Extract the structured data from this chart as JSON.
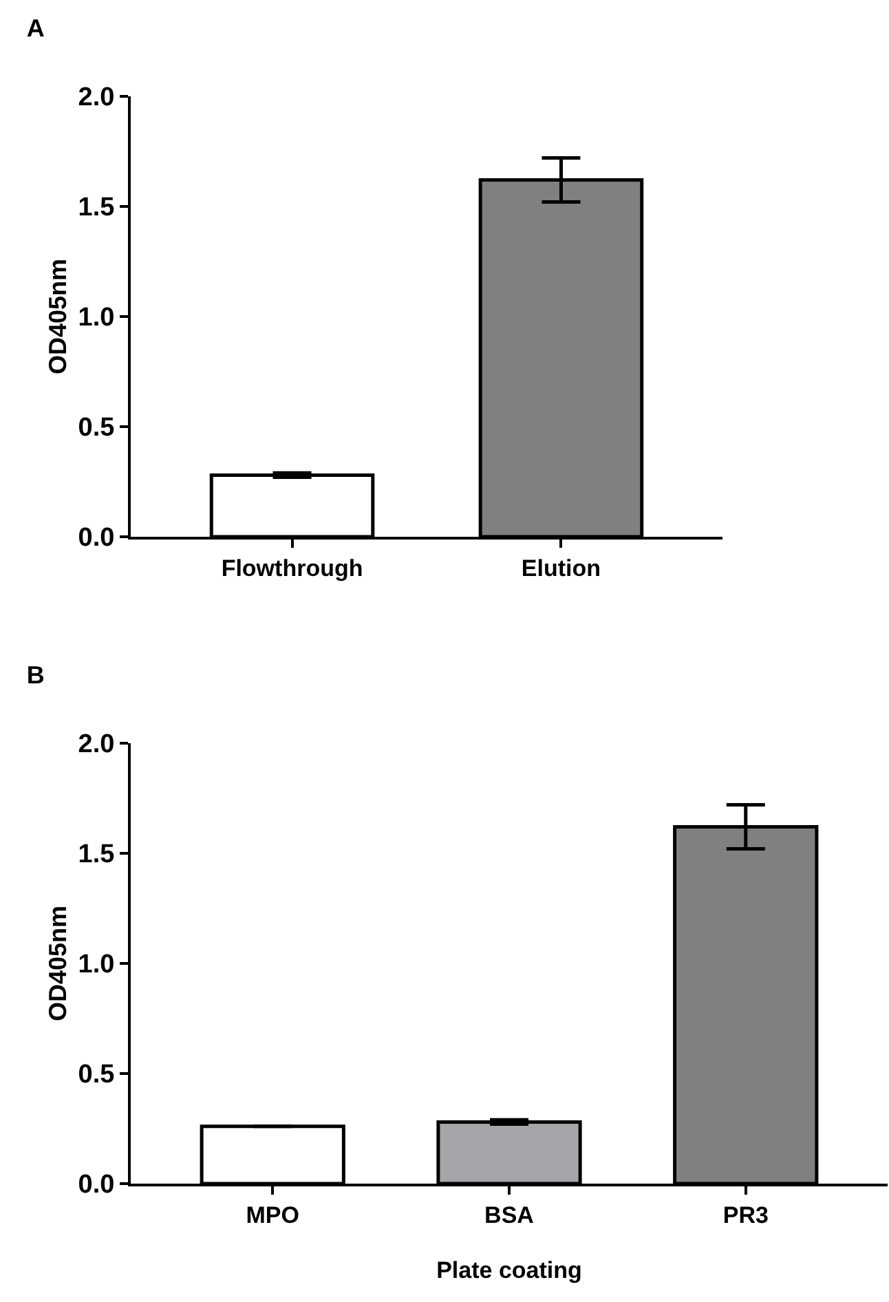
{
  "chart_data": [
    {
      "type": "bar",
      "title": "A",
      "ylabel": "OD405nm",
      "categories": [
        "Flowthrough",
        "Elution"
      ],
      "values": [
        0.28,
        1.62
      ],
      "colors": [
        "#ffffff",
        "#808080"
      ],
      "errors": [
        0.01,
        0.1
      ],
      "ylim": [
        0,
        2
      ],
      "yticks": [
        {
          "value": 0,
          "label": "0.0"
        },
        {
          "value": 0.5,
          "label": "0.5"
        },
        {
          "value": 1,
          "label": "1.0"
        },
        {
          "value": 1.5,
          "label": "1.5"
        },
        {
          "value": 2,
          "label": "2.0"
        }
      ],
      "grid": false
    },
    {
      "type": "bar",
      "title": "B",
      "ylabel": "OD405nm",
      "xlabel": "Plate coating",
      "categories": [
        "MPO",
        "BSA",
        "PR3"
      ],
      "values": [
        0.26,
        0.28,
        1.62
      ],
      "colors": [
        "#ffffff",
        "#a6a6aa",
        "#808080"
      ],
      "errors": [
        null,
        0.01,
        0.1
      ],
      "ylim": [
        0,
        2
      ],
      "yticks": [
        {
          "value": 0,
          "label": "0.0"
        },
        {
          "value": 0.5,
          "label": "0.5"
        },
        {
          "value": 1,
          "label": "1.0"
        },
        {
          "value": 1.5,
          "label": "1.5"
        },
        {
          "value": 2,
          "label": "2.0"
        }
      ],
      "grid": false
    }
  ]
}
